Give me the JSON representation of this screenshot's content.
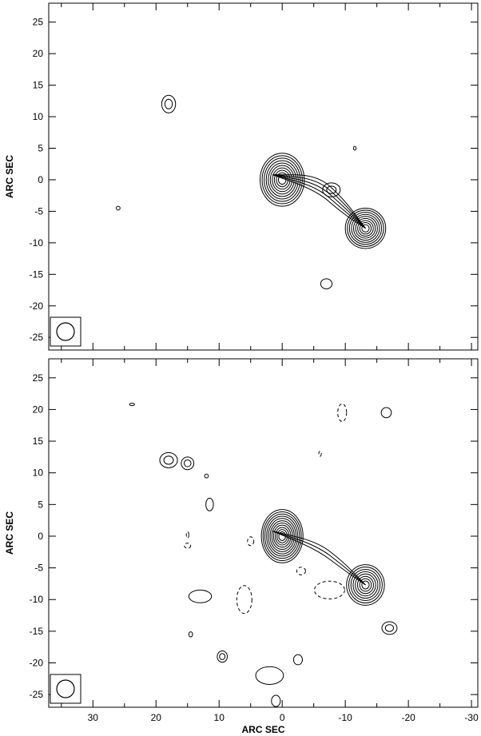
{
  "chart_data": [
    {
      "type": "contour",
      "panel": "top",
      "ylabel": "ARC SEC",
      "xlim": [
        37,
        -31
      ],
      "ylim": [
        -27,
        28
      ],
      "x_ticks": [
        30,
        20,
        10,
        0,
        -10,
        -20,
        -30
      ],
      "y_ticks": [
        25,
        20,
        15,
        10,
        5,
        0,
        -5,
        -10,
        -15,
        -20,
        -25
      ],
      "beam": {
        "shown": true,
        "location": "bottom-left"
      },
      "components": [
        {
          "name": "core",
          "x": 0,
          "y": 0,
          "rx": 3.5,
          "ry": 4.2,
          "levels": 10,
          "dash": false
        },
        {
          "name": "knot",
          "x": -7.8,
          "y": -1.6,
          "rx": 1.4,
          "ry": 1.1,
          "levels": 2,
          "dash": false
        },
        {
          "name": "hotspot",
          "x": -13.2,
          "y": -7.7,
          "rx": 3.2,
          "ry": 3.2,
          "levels": 9,
          "dash": false
        },
        {
          "name": "lobe",
          "x": 18.0,
          "y": 12.0,
          "rx": 1.1,
          "ry": 1.4,
          "levels": 2,
          "dash": false
        },
        {
          "name": "blob",
          "x": -7.0,
          "y": -16.5,
          "rx": 0.9,
          "ry": 0.8,
          "levels": 1,
          "dash": false
        },
        {
          "name": "noise",
          "x": 26.0,
          "y": -4.5,
          "rx": 0.3,
          "ry": 0.3,
          "levels": 1,
          "dash": false
        },
        {
          "name": "noise",
          "x": -11.5,
          "y": 5.0,
          "rx": 0.2,
          "ry": 0.3,
          "levels": 1,
          "dash": false
        }
      ],
      "jet": {
        "contours": 5,
        "path": [
          [
            1.5,
            0.8
          ],
          [
            -5.5,
            -0.5
          ],
          [
            -9.5,
            -4.0
          ],
          [
            -13.2,
            -7.7
          ]
        ]
      }
    },
    {
      "type": "contour",
      "panel": "bottom",
      "xlabel": "ARC SEC",
      "ylabel": "ARC SEC",
      "xlim": [
        37,
        -31
      ],
      "ylim": [
        -27,
        28
      ],
      "x_ticks": [
        30,
        20,
        10,
        0,
        -10,
        -20,
        -30
      ],
      "y_ticks": [
        25,
        20,
        15,
        10,
        5,
        0,
        -5,
        -10,
        -15,
        -20,
        -25
      ],
      "beam": {
        "shown": true,
        "location": "bottom-left"
      },
      "components": [
        {
          "name": "core",
          "x": 0,
          "y": 0,
          "rx": 3.3,
          "ry": 4.2,
          "levels": 11,
          "dash": false
        },
        {
          "name": "hotspot",
          "x": -13.2,
          "y": -7.7,
          "rx": 3.0,
          "ry": 3.2,
          "levels": 8,
          "dash": false
        },
        {
          "name": "lobe",
          "x": 18.0,
          "y": 12.0,
          "rx": 1.4,
          "ry": 1.2,
          "levels": 2,
          "dash": false
        },
        {
          "name": "lobe",
          "x": 15.0,
          "y": 11.5,
          "rx": 1.0,
          "ry": 1.0,
          "levels": 2,
          "dash": false
        },
        {
          "name": "blob",
          "x": -17.0,
          "y": -14.5,
          "rx": 1.2,
          "ry": 1.0,
          "levels": 2,
          "dash": false
        },
        {
          "name": "blob",
          "x": 13.0,
          "y": -9.5,
          "rx": 1.8,
          "ry": 1.0,
          "levels": 1,
          "dash": false
        },
        {
          "name": "blob",
          "x": 11.5,
          "y": 5.0,
          "rx": 0.6,
          "ry": 1.0,
          "levels": 1,
          "dash": false
        },
        {
          "name": "blob",
          "x": 9.5,
          "y": -19.0,
          "rx": 0.8,
          "ry": 0.9,
          "levels": 2,
          "dash": false
        },
        {
          "name": "blob",
          "x": 2.0,
          "y": -22.0,
          "rx": 2.2,
          "ry": 1.4,
          "levels": 1,
          "dash": false
        },
        {
          "name": "blob",
          "x": -16.5,
          "y": 19.5,
          "rx": 0.8,
          "ry": 0.8,
          "levels": 1,
          "dash": false
        },
        {
          "name": "blob",
          "x": -2.5,
          "y": -19.5,
          "rx": 0.7,
          "ry": 0.8,
          "levels": 1,
          "dash": false
        },
        {
          "name": "blob",
          "x": 1.0,
          "y": -26.0,
          "rx": 0.7,
          "ry": 0.9,
          "levels": 1,
          "dash": false
        },
        {
          "name": "blob",
          "x": 23.8,
          "y": 20.8,
          "rx": 0.4,
          "ry": 0.2,
          "levels": 1,
          "dash": false
        },
        {
          "name": "blob",
          "x": 14.5,
          "y": -15.5,
          "rx": 0.3,
          "ry": 0.4,
          "levels": 1,
          "dash": false
        },
        {
          "name": "blob",
          "x": 12.0,
          "y": 9.5,
          "rx": 0.3,
          "ry": 0.3,
          "levels": 1,
          "dash": false
        },
        {
          "name": "negative",
          "x": 6.0,
          "y": -10.0,
          "rx": 1.2,
          "ry": 2.2,
          "levels": 1,
          "dash": true
        },
        {
          "name": "negative",
          "x": -7.5,
          "y": -8.5,
          "rx": 2.4,
          "ry": 1.4,
          "levels": 1,
          "dash": true
        },
        {
          "name": "negative",
          "x": -9.5,
          "y": 19.5,
          "rx": 0.7,
          "ry": 1.4,
          "levels": 1,
          "dash": true
        },
        {
          "name": "negative",
          "x": -3.0,
          "y": -5.5,
          "rx": 0.7,
          "ry": 0.6,
          "levels": 1,
          "dash": true
        },
        {
          "name": "negative",
          "x": 15.0,
          "y": -1.5,
          "rx": 0.5,
          "ry": 0.4,
          "levels": 1,
          "dash": true
        },
        {
          "name": "negative",
          "x": 15.0,
          "y": 0.2,
          "rx": 0.2,
          "ry": 0.5,
          "levels": 1,
          "dash": true
        },
        {
          "name": "negative",
          "x": -6.0,
          "y": 13.0,
          "rx": 0.2,
          "ry": 0.4,
          "levels": 1,
          "dash": true
        },
        {
          "name": "negative",
          "x": 5.0,
          "y": -0.8,
          "rx": 0.5,
          "ry": 0.7,
          "levels": 1,
          "dash": true
        }
      ],
      "jet": {
        "contours": 3,
        "path": [
          [
            1.5,
            0.8
          ],
          [
            -5.5,
            -1.5
          ],
          [
            -9.5,
            -4.5
          ],
          [
            -13.2,
            -7.7
          ]
        ]
      }
    }
  ]
}
